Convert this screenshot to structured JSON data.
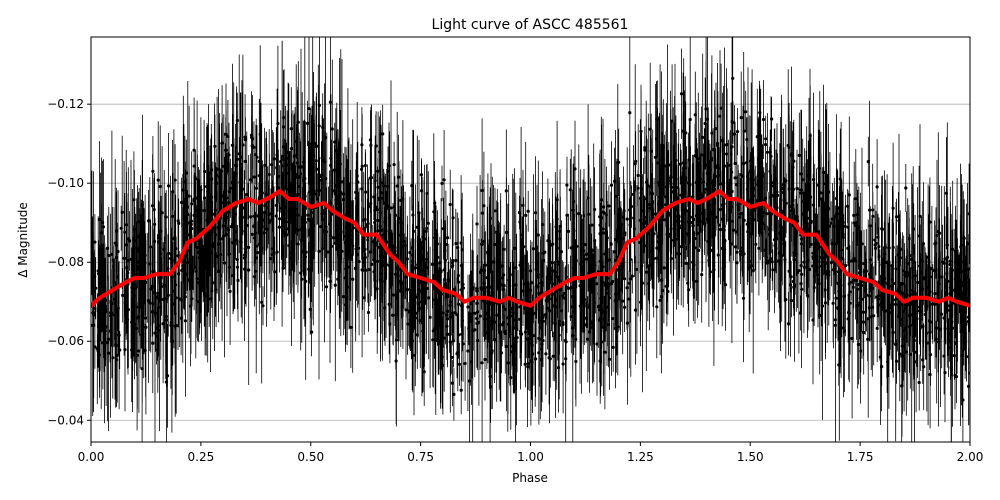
{
  "chart_data": {
    "type": "scatter",
    "title": "Light curve of ASCC 485561",
    "xlabel": "Phase",
    "ylabel": "Δ Magnitude",
    "xlim": [
      0.0,
      2.0
    ],
    "ylim": [
      -0.0345,
      -0.137
    ],
    "y_inverted": true,
    "grid": "y-only",
    "x_ticks": [
      "0.00",
      "0.25",
      "0.50",
      "0.75",
      "1.00",
      "1.25",
      "1.50",
      "1.75",
      "2.00"
    ],
    "y_ticks": [
      "−0.04",
      "−0.06",
      "−0.08",
      "−0.10",
      "−0.12"
    ],
    "x_tick_values": [
      0.0,
      0.25,
      0.5,
      0.75,
      1.0,
      1.25,
      1.5,
      1.75,
      2.0
    ],
    "y_tick_values": [
      -0.04,
      -0.06,
      -0.08,
      -0.1,
      -0.12
    ],
    "colors": {
      "points": "#000000",
      "binned": "#ff0000",
      "grid": "#b0b0b0"
    },
    "series": [
      {
        "style": "black points with error bars (dense, scatter around the binned curve)",
        "scatter_sigma": 0.018,
        "errorbar_sigma": 0.015
      },
      {
        "style": "red thick line (binned light curve), phase repeated twice",
        "x": [
          0.0,
          0.02,
          0.05,
          0.08,
          0.1,
          0.12,
          0.15,
          0.18,
          0.2,
          0.22,
          0.24,
          0.27,
          0.3,
          0.33,
          0.36,
          0.38,
          0.4,
          0.43,
          0.45,
          0.47,
          0.5,
          0.53,
          0.55,
          0.58,
          0.6,
          0.62,
          0.65,
          0.68,
          0.7,
          0.72,
          0.75,
          0.78,
          0.8,
          0.83,
          0.85,
          0.87,
          0.9,
          0.93,
          0.95,
          0.97,
          1.0,
          1.02,
          1.05,
          1.08,
          1.1,
          1.12,
          1.15,
          1.18,
          1.2,
          1.22,
          1.24,
          1.27,
          1.3,
          1.33,
          1.36,
          1.38,
          1.4,
          1.43,
          1.45,
          1.47,
          1.5,
          1.53,
          1.55,
          1.58,
          1.6,
          1.62,
          1.65,
          1.68,
          1.7,
          1.72,
          1.75,
          1.78,
          1.8,
          1.83,
          1.85,
          1.87,
          1.9,
          1.93,
          1.95,
          1.97,
          2.0
        ],
        "y": [
          -0.069,
          -0.071,
          -0.073,
          -0.075,
          -0.076,
          -0.076,
          -0.077,
          -0.077,
          -0.08,
          -0.085,
          -0.086,
          -0.089,
          -0.093,
          -0.095,
          -0.096,
          -0.095,
          -0.096,
          -0.098,
          -0.096,
          -0.096,
          -0.094,
          -0.095,
          -0.093,
          -0.091,
          -0.09,
          -0.087,
          -0.087,
          -0.082,
          -0.08,
          -0.077,
          -0.076,
          -0.075,
          -0.073,
          -0.072,
          -0.07,
          -0.071,
          -0.071,
          -0.07,
          -0.071,
          -0.07,
          -0.069,
          -0.071,
          -0.073,
          -0.075,
          -0.076,
          -0.076,
          -0.077,
          -0.077,
          -0.08,
          -0.085,
          -0.086,
          -0.089,
          -0.093,
          -0.095,
          -0.096,
          -0.095,
          -0.096,
          -0.098,
          -0.096,
          -0.096,
          -0.094,
          -0.095,
          -0.093,
          -0.091,
          -0.09,
          -0.087,
          -0.087,
          -0.082,
          -0.08,
          -0.077,
          -0.076,
          -0.075,
          -0.073,
          -0.072,
          -0.07,
          -0.071,
          -0.071,
          -0.07,
          -0.071,
          -0.07,
          -0.069
        ]
      }
    ]
  }
}
